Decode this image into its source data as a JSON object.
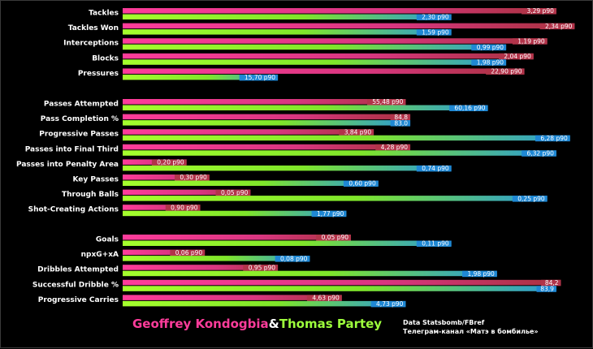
{
  "legend": {
    "player1": "Geoffrey Kondogbia",
    "separator": "&",
    "player2": "Thomas Partey"
  },
  "source": {
    "line1": "Data Statsbomb/FBref",
    "line2": "Телеграм-канал «Матэ в бомбилье»"
  },
  "colors": {
    "player1_bar": "#e8378f",
    "player1_label_bg": "#b2344a",
    "player2_bar": "#8cf51a",
    "player2_label_bg": "#1f88d4",
    "background": "#000000"
  },
  "chart_data": {
    "type": "bar",
    "orientation": "horizontal",
    "scale": "percentile",
    "categories": [
      "Tackles",
      "Tackles Won",
      "Interceptions",
      "Blocks",
      "Pressures",
      "Passes Attempted",
      "Pass Completion %",
      "Progressive Passes",
      "Passes into Final Third",
      "Passes into Penalty Area",
      "Key Passes",
      "Through Balls",
      "Shot-Creating Actions",
      "Goals",
      "npxG+xA",
      "Dribbles Attempted",
      "Successful Dribble %",
      "Progressive Carries"
    ],
    "groups": [
      5,
      8,
      5
    ],
    "series": [
      {
        "name": "Geoffrey Kondogbia",
        "values": [
          95,
          99,
          93,
          90,
          88,
          62,
          63,
          55,
          63,
          14,
          19,
          28,
          17,
          50,
          18,
          34,
          96,
          48
        ],
        "labels": [
          "3,29 p90",
          "2,34 p90",
          "1,19 p90",
          "2,04 p90",
          "22,90 p90",
          "55,48 p90",
          "84,8",
          "3,84 p90",
          "4,28 p90",
          "0,20 p90",
          "0,30 p90",
          "0,05 p90",
          "0,90 p90",
          "0,05 p90",
          "0,06 p90",
          "0,95 p90",
          "84,2",
          "4,63 p90"
        ]
      },
      {
        "name": "Thomas Partey",
        "values": [
          72,
          72,
          84,
          84,
          34,
          80,
          63,
          98,
          95,
          72,
          56,
          93,
          49,
          72,
          41,
          82,
          95,
          62
        ]
      }
    ],
    "series2_labels": [
      "2,30 p90",
      "1,59 p90",
      "0,99 p90",
      "1,98 p90",
      "15,70 p90",
      "60,16 p90",
      "83,0",
      "6,28 p90",
      "6,32 p90",
      "0,74 p90",
      "0,60 p90",
      "0,25 p90",
      "1,77 p90",
      "0,11 p90",
      "0,08 p90",
      "1,98 p90",
      "83,9",
      "4,73 p90"
    ]
  }
}
